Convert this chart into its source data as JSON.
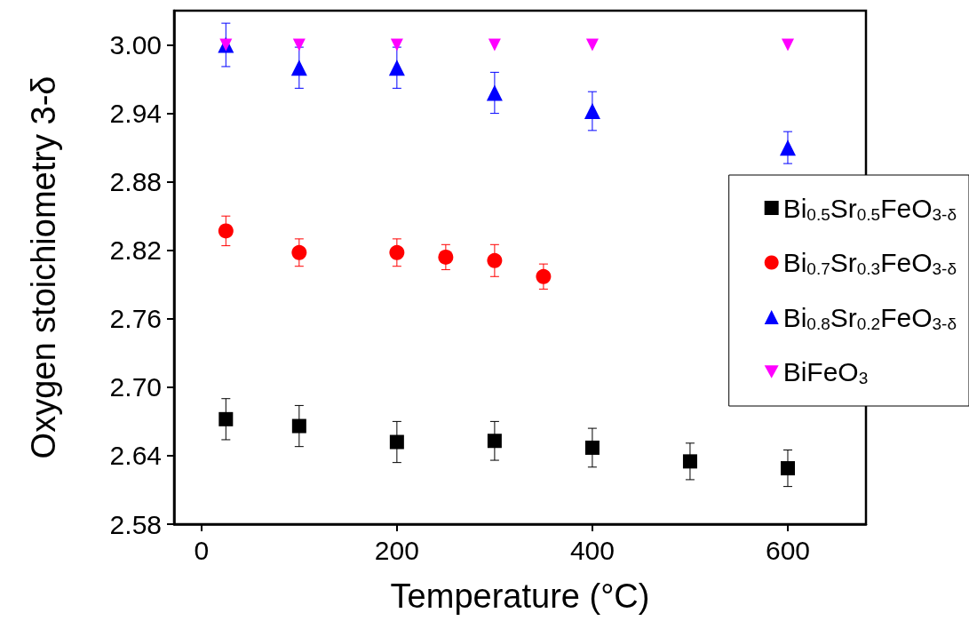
{
  "chart_data": {
    "type": "scatter",
    "xlabel": "Temperature (°C)",
    "ylabel": "Oxygen stoichiometry 3-δ",
    "xlim": [
      -28,
      680
    ],
    "xticks": [
      0,
      200,
      400,
      600
    ],
    "ylim": [
      2.58,
      3.03
    ],
    "yticks": [
      {
        "value": 2.58,
        "label": "2.58"
      },
      {
        "value": 2.64,
        "label": "2.64"
      },
      {
        "value": 2.7,
        "label": "2.70"
      },
      {
        "value": 2.76,
        "label": "2.76"
      },
      {
        "value": 2.82,
        "label": "2.82"
      },
      {
        "value": 2.88,
        "label": "2.88"
      },
      {
        "value": 2.94,
        "label": "2.94"
      },
      {
        "value": 3,
        "label": "3.00"
      }
    ],
    "grid": false,
    "legend": "right",
    "series": [
      {
        "name": "Bi$_{0.5}$Sr$_{0.5}$FeO$_{3-δ}$",
        "color": "#000000",
        "marker": "square",
        "x": [
          25,
          100,
          200,
          300,
          400,
          500,
          600
        ],
        "values": [
          2.672,
          2.666,
          2.652,
          2.653,
          2.647,
          2.635,
          2.629
        ],
        "errors": [
          0.018,
          0.018,
          0.018,
          0.017,
          0.017,
          0.016,
          0.016
        ]
      },
      {
        "name": "Bi$_{0.7}$Sr$_{0.3}$FeO$_{3-δ}$",
        "color": "#ff0000",
        "marker": "circle",
        "x": [
          25,
          100,
          200,
          250,
          300,
          350
        ],
        "values": [
          2.837,
          2.818,
          2.818,
          2.814,
          2.811,
          2.797
        ],
        "errors": [
          0.013,
          0.012,
          0.012,
          0.011,
          0.014,
          0.011
        ]
      },
      {
        "name": "Bi$_{0.8}$Sr$_{0.2}$FeO$_{3-δ}$",
        "color": "#0000ff",
        "marker": "triangle",
        "x": [
          25,
          100,
          200,
          300,
          400,
          600
        ],
        "values": [
          3.0,
          2.98,
          2.98,
          2.958,
          2.942,
          2.91
        ],
        "errors": [
          0.019,
          0.018,
          0.018,
          0.018,
          0.017,
          0.014
        ]
      },
      {
        "name": "BiFeO$_{3}$",
        "color": "#ff00ff",
        "marker": "triangle-down",
        "x": [
          25,
          100,
          200,
          300,
          400,
          600
        ],
        "values": [
          3.0,
          3.0,
          3.0,
          3.0,
          3.0,
          3.0
        ]
      }
    ]
  }
}
